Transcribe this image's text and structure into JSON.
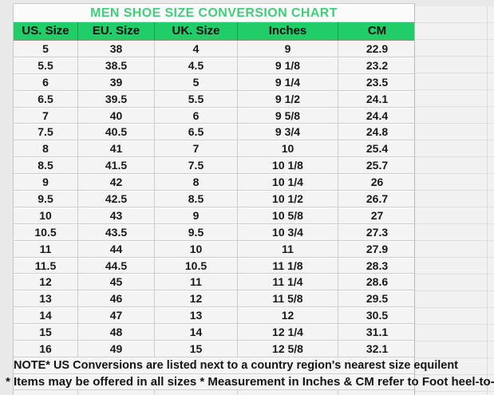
{
  "title": "MEN SHOE SIZE CONVERSION CHART",
  "chart_data": {
    "type": "table",
    "title": "MEN SHOE SIZE CONVERSION CHART",
    "columns": [
      "US. Size",
      "EU. Size",
      "UK. Size",
      "Inches",
      "CM"
    ],
    "rows": [
      [
        "5",
        "38",
        "4",
        "9",
        "22.9"
      ],
      [
        "5.5",
        "38.5",
        "4.5",
        "9 1/8",
        "23.2"
      ],
      [
        "6",
        "39",
        "5",
        "9 1/4",
        "23.5"
      ],
      [
        "6.5",
        "39.5",
        "5.5",
        "9 1/2",
        "24.1"
      ],
      [
        "7",
        "40",
        "6",
        "9 5/8",
        "24.4"
      ],
      [
        "7.5",
        "40.5",
        "6.5",
        "9 3/4",
        "24.8"
      ],
      [
        "8",
        "41",
        "7",
        "10",
        "25.4"
      ],
      [
        "8.5",
        "41.5",
        "7.5",
        "10 1/8",
        "25.7"
      ],
      [
        "9",
        "42",
        "8",
        "10 1/4",
        "26"
      ],
      [
        "9.5",
        "42.5",
        "8.5",
        "10 1/2",
        "26.7"
      ],
      [
        "10",
        "43",
        "9",
        "10 5/8",
        "27"
      ],
      [
        "10.5",
        "43.5",
        "9.5",
        "10 3/4",
        "27.3"
      ],
      [
        "11",
        "44",
        "10",
        "11",
        "27.9"
      ],
      [
        "11.5",
        "44.5",
        "10.5",
        "11 1/8",
        "28.3"
      ],
      [
        "12",
        "45",
        "11",
        "11 1/4",
        "28.6"
      ],
      [
        "13",
        "46",
        "12",
        "11 5/8",
        "29.5"
      ],
      [
        "14",
        "47",
        "13",
        "12",
        "30.5"
      ],
      [
        "15",
        "48",
        "14",
        "12 1/4",
        "31.1"
      ],
      [
        "16",
        "49",
        "15",
        "12 5/8",
        "32.1"
      ]
    ]
  },
  "notes": [
    "NOTE* US Conversions are listed next to a country region's nearest size equilent",
    "* Items may be offered in all sizes * Measurement in Inches & CM refer to Foot heel-to-toe"
  ],
  "colors": {
    "header_bg": "#20cd68",
    "title_text": "#3ecf7a",
    "cell_text": "#191919"
  }
}
